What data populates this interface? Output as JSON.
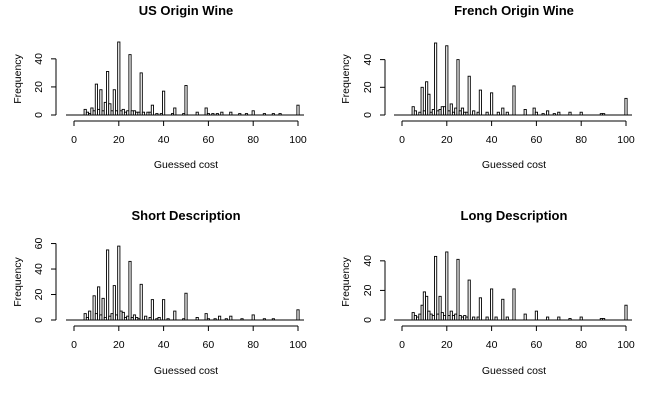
{
  "chart_data": [
    {
      "type": "bar",
      "title": "US Origin Wine",
      "xlabel": "Guessed cost",
      "ylabel": "Frequency",
      "xlim": [
        0,
        100
      ],
      "ylim": [
        0,
        52
      ],
      "xticks": [
        0,
        20,
        40,
        60,
        80,
        100
      ],
      "yticks": [
        0,
        20,
        40
      ],
      "bins": [
        {
          "x": 5,
          "y": 4
        },
        {
          "x": 6,
          "y": 2
        },
        {
          "x": 7,
          "y": 1
        },
        {
          "x": 8,
          "y": 5
        },
        {
          "x": 9,
          "y": 3
        },
        {
          "x": 10,
          "y": 22
        },
        {
          "x": 11,
          "y": 4
        },
        {
          "x": 12,
          "y": 18
        },
        {
          "x": 13,
          "y": 3
        },
        {
          "x": 14,
          "y": 9
        },
        {
          "x": 15,
          "y": 31
        },
        {
          "x": 16,
          "y": 8
        },
        {
          "x": 17,
          "y": 3
        },
        {
          "x": 18,
          "y": 18
        },
        {
          "x": 19,
          "y": 3
        },
        {
          "x": 20,
          "y": 52
        },
        {
          "x": 21,
          "y": 3
        },
        {
          "x": 22,
          "y": 4
        },
        {
          "x": 23,
          "y": 2
        },
        {
          "x": 24,
          "y": 3
        },
        {
          "x": 25,
          "y": 43
        },
        {
          "x": 26,
          "y": 3
        },
        {
          "x": 27,
          "y": 3
        },
        {
          "x": 28,
          "y": 2
        },
        {
          "x": 29,
          "y": 2
        },
        {
          "x": 30,
          "y": 30
        },
        {
          "x": 31,
          "y": 2
        },
        {
          "x": 33,
          "y": 2
        },
        {
          "x": 34,
          "y": 2
        },
        {
          "x": 35,
          "y": 7
        },
        {
          "x": 37,
          "y": 1
        },
        {
          "x": 39,
          "y": 1
        },
        {
          "x": 40,
          "y": 17
        },
        {
          "x": 44,
          "y": 1
        },
        {
          "x": 45,
          "y": 5
        },
        {
          "x": 49,
          "y": 1
        },
        {
          "x": 50,
          "y": 21
        },
        {
          "x": 55,
          "y": 2
        },
        {
          "x": 59,
          "y": 5
        },
        {
          "x": 60,
          "y": 1
        },
        {
          "x": 62,
          "y": 1
        },
        {
          "x": 64,
          "y": 1
        },
        {
          "x": 66,
          "y": 2
        },
        {
          "x": 70,
          "y": 2
        },
        {
          "x": 74,
          "y": 1
        },
        {
          "x": 77,
          "y": 1
        },
        {
          "x": 80,
          "y": 3
        },
        {
          "x": 85,
          "y": 1
        },
        {
          "x": 89,
          "y": 1
        },
        {
          "x": 92,
          "y": 1
        },
        {
          "x": 100,
          "y": 7
        }
      ]
    },
    {
      "type": "bar",
      "title": "French Origin Wine",
      "xlabel": "Guessed cost",
      "ylabel": "Frequency",
      "xlim": [
        0,
        100
      ],
      "ylim": [
        0,
        52
      ],
      "xticks": [
        0,
        20,
        40,
        60,
        80,
        100
      ],
      "yticks": [
        0,
        20,
        40
      ],
      "bins": [
        {
          "x": 5,
          "y": 6
        },
        {
          "x": 6,
          "y": 3
        },
        {
          "x": 8,
          "y": 2
        },
        {
          "x": 9,
          "y": 20
        },
        {
          "x": 10,
          "y": 3
        },
        {
          "x": 11,
          "y": 24
        },
        {
          "x": 12,
          "y": 15
        },
        {
          "x": 13,
          "y": 2
        },
        {
          "x": 14,
          "y": 4
        },
        {
          "x": 15,
          "y": 52
        },
        {
          "x": 16,
          "y": 3
        },
        {
          "x": 17,
          "y": 4
        },
        {
          "x": 18,
          "y": 6
        },
        {
          "x": 19,
          "y": 6
        },
        {
          "x": 20,
          "y": 50
        },
        {
          "x": 21,
          "y": 3
        },
        {
          "x": 22,
          "y": 8
        },
        {
          "x": 23,
          "y": 2
        },
        {
          "x": 24,
          "y": 5
        },
        {
          "x": 25,
          "y": 40
        },
        {
          "x": 26,
          "y": 3
        },
        {
          "x": 27,
          "y": 5
        },
        {
          "x": 28,
          "y": 2
        },
        {
          "x": 29,
          "y": 2
        },
        {
          "x": 30,
          "y": 28
        },
        {
          "x": 32,
          "y": 3
        },
        {
          "x": 34,
          "y": 2
        },
        {
          "x": 35,
          "y": 18
        },
        {
          "x": 38,
          "y": 2
        },
        {
          "x": 40,
          "y": 16
        },
        {
          "x": 43,
          "y": 2
        },
        {
          "x": 45,
          "y": 5
        },
        {
          "x": 47,
          "y": 2
        },
        {
          "x": 50,
          "y": 21
        },
        {
          "x": 55,
          "y": 4
        },
        {
          "x": 59,
          "y": 5
        },
        {
          "x": 60,
          "y": 2
        },
        {
          "x": 63,
          "y": 1
        },
        {
          "x": 65,
          "y": 3
        },
        {
          "x": 68,
          "y": 1
        },
        {
          "x": 70,
          "y": 2
        },
        {
          "x": 75,
          "y": 2
        },
        {
          "x": 80,
          "y": 2
        },
        {
          "x": 89,
          "y": 1
        },
        {
          "x": 90,
          "y": 1
        },
        {
          "x": 100,
          "y": 12
        }
      ]
    },
    {
      "type": "bar",
      "title": "Short Description",
      "xlabel": "Guessed cost",
      "ylabel": "Frequency",
      "xlim": [
        0,
        100
      ],
      "ylim": [
        0,
        62
      ],
      "xticks": [
        0,
        20,
        40,
        60,
        80,
        100
      ],
      "yticks": [
        0,
        20,
        40,
        60
      ],
      "bins": [
        {
          "x": 5,
          "y": 5
        },
        {
          "x": 6,
          "y": 2
        },
        {
          "x": 7,
          "y": 7
        },
        {
          "x": 9,
          "y": 19
        },
        {
          "x": 10,
          "y": 5
        },
        {
          "x": 11,
          "y": 26
        },
        {
          "x": 12,
          "y": 4
        },
        {
          "x": 13,
          "y": 17
        },
        {
          "x": 14,
          "y": 2
        },
        {
          "x": 15,
          "y": 55
        },
        {
          "x": 16,
          "y": 3
        },
        {
          "x": 17,
          "y": 5
        },
        {
          "x": 18,
          "y": 27
        },
        {
          "x": 19,
          "y": 4
        },
        {
          "x": 20,
          "y": 58
        },
        {
          "x": 21,
          "y": 7
        },
        {
          "x": 22,
          "y": 6
        },
        {
          "x": 23,
          "y": 2
        },
        {
          "x": 24,
          "y": 3
        },
        {
          "x": 25,
          "y": 46
        },
        {
          "x": 26,
          "y": 2
        },
        {
          "x": 27,
          "y": 4
        },
        {
          "x": 28,
          "y": 2
        },
        {
          "x": 29,
          "y": 1
        },
        {
          "x": 30,
          "y": 28
        },
        {
          "x": 32,
          "y": 3
        },
        {
          "x": 34,
          "y": 2
        },
        {
          "x": 35,
          "y": 16
        },
        {
          "x": 37,
          "y": 1
        },
        {
          "x": 38,
          "y": 2
        },
        {
          "x": 40,
          "y": 16
        },
        {
          "x": 42,
          "y": 1
        },
        {
          "x": 45,
          "y": 7
        },
        {
          "x": 49,
          "y": 1
        },
        {
          "x": 50,
          "y": 21
        },
        {
          "x": 55,
          "y": 2
        },
        {
          "x": 59,
          "y": 5
        },
        {
          "x": 60,
          "y": 1
        },
        {
          "x": 63,
          "y": 1
        },
        {
          "x": 65,
          "y": 3
        },
        {
          "x": 68,
          "y": 1
        },
        {
          "x": 70,
          "y": 3
        },
        {
          "x": 75,
          "y": 1
        },
        {
          "x": 80,
          "y": 4
        },
        {
          "x": 85,
          "y": 1
        },
        {
          "x": 89,
          "y": 1
        },
        {
          "x": 100,
          "y": 8
        }
      ]
    },
    {
      "type": "bar",
      "title": "Long Description",
      "xlabel": "Guessed cost",
      "ylabel": "Frequency",
      "xlim": [
        0,
        100
      ],
      "ylim": [
        0,
        48
      ],
      "xticks": [
        0,
        20,
        40,
        60,
        80,
        100
      ],
      "yticks": [
        0,
        20,
        40
      ],
      "bins": [
        {
          "x": 5,
          "y": 5
        },
        {
          "x": 6,
          "y": 3
        },
        {
          "x": 7,
          "y": 2
        },
        {
          "x": 8,
          "y": 4
        },
        {
          "x": 9,
          "y": 10
        },
        {
          "x": 10,
          "y": 19
        },
        {
          "x": 11,
          "y": 16
        },
        {
          "x": 12,
          "y": 6
        },
        {
          "x": 13,
          "y": 4
        },
        {
          "x": 14,
          "y": 3
        },
        {
          "x": 15,
          "y": 43
        },
        {
          "x": 16,
          "y": 4
        },
        {
          "x": 17,
          "y": 16
        },
        {
          "x": 18,
          "y": 5
        },
        {
          "x": 19,
          "y": 3
        },
        {
          "x": 20,
          "y": 46
        },
        {
          "x": 21,
          "y": 3
        },
        {
          "x": 22,
          "y": 6
        },
        {
          "x": 23,
          "y": 3
        },
        {
          "x": 24,
          "y": 4
        },
        {
          "x": 25,
          "y": 41
        },
        {
          "x": 26,
          "y": 3
        },
        {
          "x": 27,
          "y": 2
        },
        {
          "x": 28,
          "y": 3
        },
        {
          "x": 29,
          "y": 2
        },
        {
          "x": 30,
          "y": 27
        },
        {
          "x": 32,
          "y": 2
        },
        {
          "x": 34,
          "y": 2
        },
        {
          "x": 35,
          "y": 15
        },
        {
          "x": 38,
          "y": 2
        },
        {
          "x": 40,
          "y": 21
        },
        {
          "x": 42,
          "y": 2
        },
        {
          "x": 45,
          "y": 14
        },
        {
          "x": 47,
          "y": 2
        },
        {
          "x": 50,
          "y": 21
        },
        {
          "x": 55,
          "y": 4
        },
        {
          "x": 60,
          "y": 6
        },
        {
          "x": 65,
          "y": 2
        },
        {
          "x": 70,
          "y": 2
        },
        {
          "x": 75,
          "y": 1
        },
        {
          "x": 80,
          "y": 2
        },
        {
          "x": 89,
          "y": 1
        },
        {
          "x": 90,
          "y": 1
        },
        {
          "x": 100,
          "y": 10
        }
      ]
    }
  ]
}
